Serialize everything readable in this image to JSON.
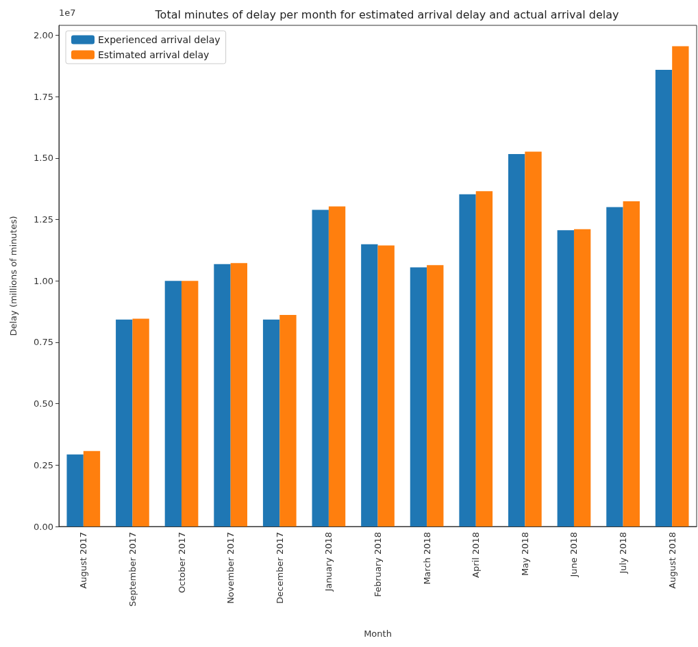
{
  "chart_data": {
    "type": "bar",
    "title": "Total minutes of delay per month for estimated arrival delay and actual arrival delay",
    "xlabel": "Month",
    "ylabel": "Delay (millions of minutes)",
    "annotations": [
      "1e7"
    ],
    "categories": [
      "August 2017",
      "September 2017",
      "October 2017",
      "November 2017",
      "December 2017",
      "January 2018",
      "February 2018",
      "March 2018",
      "April 2018",
      "May 2018",
      "June 2018",
      "July 2018",
      "August 2018"
    ],
    "series": [
      {
        "name": "Experienced arrival delay",
        "color": "#1f77b4",
        "values": [
          0.293,
          0.842,
          1.0,
          1.068,
          0.842,
          1.289,
          1.149,
          1.055,
          1.352,
          1.516,
          1.206,
          1.3,
          1.859
        ]
      },
      {
        "name": "Estimated arrival delay",
        "color": "#ff7f0e",
        "values": [
          0.307,
          0.846,
          1.0,
          1.072,
          0.861,
          1.303,
          1.144,
          1.064,
          1.365,
          1.526,
          1.21,
          1.324,
          1.955
        ]
      }
    ],
    "ylim": [
      0,
      2.04
    ],
    "yticks": [
      {
        "value": 0,
        "label": "0.00"
      },
      {
        "value": 0.25,
        "label": "0.25"
      },
      {
        "value": 0.5,
        "label": "0.50"
      },
      {
        "value": 0.75,
        "label": "0.75"
      },
      {
        "value": 1,
        "label": "1.00"
      },
      {
        "value": 1.25,
        "label": "1.25"
      },
      {
        "value": 1.5,
        "label": "1.50"
      },
      {
        "value": 1.75,
        "label": "1.75"
      },
      {
        "value": 2,
        "label": "2.00"
      }
    ],
    "grid": false,
    "legend": "top left"
  }
}
